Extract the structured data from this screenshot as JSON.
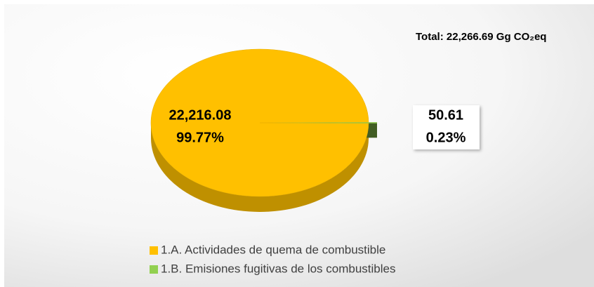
{
  "chart_data": {
    "type": "pie3d",
    "title": "Total: 22,266.69 Gg CO₂eq",
    "categories": [
      "1.A. Actividades de quema de combustible",
      "1.B. Emisiones fugitivas de los combustibles"
    ],
    "values": [
      22216.08,
      50.61
    ],
    "value_labels": [
      "22,216.08",
      "50.61"
    ],
    "percent_labels": [
      "99.77%",
      "0.23%"
    ],
    "colors": [
      "#FFC000",
      "#92D050"
    ],
    "legend": "bottom"
  }
}
